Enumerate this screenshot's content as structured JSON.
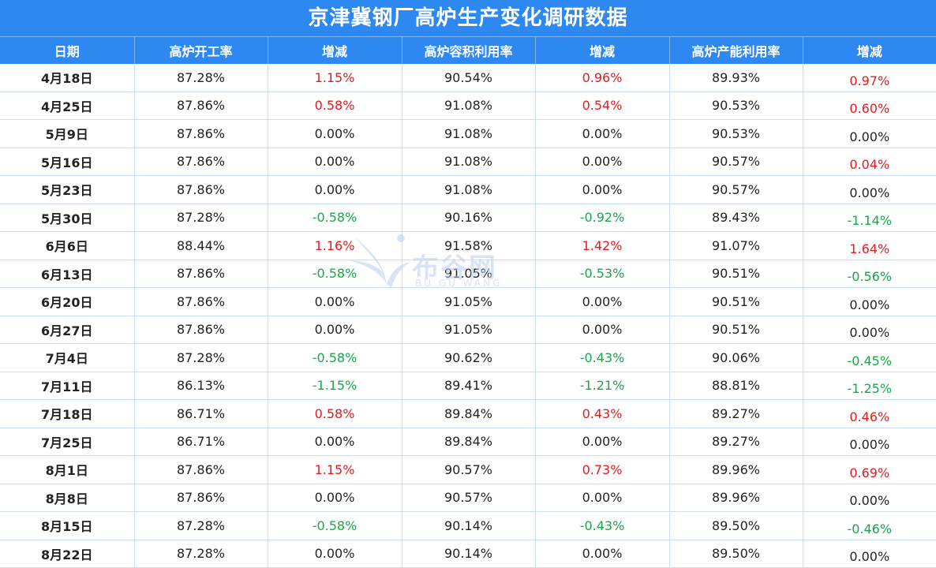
{
  "title": "京津冀钢厂高炉生产变化调研数据",
  "headers": [
    "日期",
    "高炉开工率",
    "增减",
    "高炉容积利用率",
    "增减",
    "高炉产能利用率",
    "增减"
  ],
  "rows": [
    [
      "4月18日",
      "87.28%",
      "1.15%",
      "90.54%",
      "0.96%",
      "89.93%",
      "0.97%"
    ],
    [
      "4月25日",
      "87.86%",
      "0.58%",
      "91.08%",
      "0.54%",
      "90.53%",
      "0.60%"
    ],
    [
      "5月9日",
      "87.86%",
      "0.00%",
      "91.08%",
      "0.00%",
      "90.53%",
      "0.00%"
    ],
    [
      "5月16日",
      "87.86%",
      "0.00%",
      "91.08%",
      "0.00%",
      "90.57%",
      "0.04%"
    ],
    [
      "5月23日",
      "87.86%",
      "0.00%",
      "91.08%",
      "0.00%",
      "90.57%",
      "0.00%"
    ],
    [
      "5月30日",
      "87.28%",
      "-0.58%",
      "90.16%",
      "-0.92%",
      "89.43%",
      "-1.14%"
    ],
    [
      "6月6日",
      "88.44%",
      "1.16%",
      "91.58%",
      "1.42%",
      "91.07%",
      "1.64%"
    ],
    [
      "6月13日",
      "87.86%",
      "-0.58%",
      "91.05%",
      "-0.53%",
      "90.51%",
      "-0.56%"
    ],
    [
      "6月20日",
      "87.86%",
      "0.00%",
      "91.05%",
      "0.00%",
      "90.51%",
      "0.00%"
    ],
    [
      "6月27日",
      "87.86%",
      "0.00%",
      "91.05%",
      "0.00%",
      "90.51%",
      "0.00%"
    ],
    [
      "7月4日",
      "87.28%",
      "-0.58%",
      "90.62%",
      "-0.43%",
      "90.06%",
      "-0.45%"
    ],
    [
      "7月11日",
      "86.13%",
      "-1.15%",
      "89.41%",
      "-1.21%",
      "88.81%",
      "-1.25%"
    ],
    [
      "7月18日",
      "86.71%",
      "0.58%",
      "89.84%",
      "0.43%",
      "89.27%",
      "0.46%"
    ],
    [
      "7月25日",
      "86.71%",
      "0.00%",
      "89.84%",
      "0.00%",
      "89.27%",
      "0.00%"
    ],
    [
      "8月1日",
      "87.86%",
      "1.15%",
      "90.57%",
      "0.73%",
      "89.96%",
      "0.69%"
    ],
    [
      "8月8日",
      "87.86%",
      "0.00%",
      "90.57%",
      "0.00%",
      "89.96%",
      "0.00%"
    ],
    [
      "8月15日",
      "87.28%",
      "-0.58%",
      "90.14%",
      "-0.43%",
      "89.50%",
      "-0.46%"
    ],
    [
      "8月22日",
      "87.28%",
      "0.00%",
      "90.14%",
      "0.00%",
      "89.50%",
      "0.00%"
    ]
  ],
  "watermark": {
    "text": "布谷网",
    "sub": "BU GU WANG",
    "icon": "bird-logo-icon"
  },
  "colors": {
    "header_bg": "#2e88f2",
    "increase": "#e8191e",
    "decrease": "#16a84a"
  }
}
